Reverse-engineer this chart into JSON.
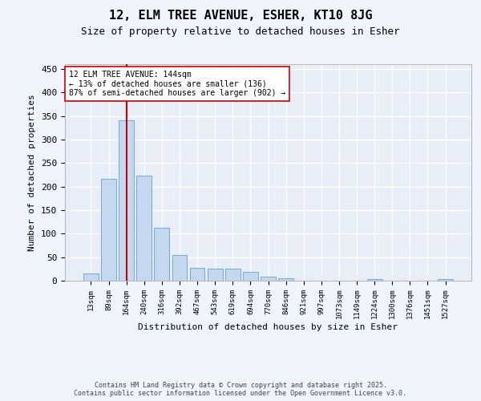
{
  "title1": "12, ELM TREE AVENUE, ESHER, KT10 8JG",
  "title2": "Size of property relative to detached houses in Esher",
  "xlabel": "Distribution of detached houses by size in Esher",
  "ylabel": "Number of detached properties",
  "bar_labels": [
    "13sqm",
    "89sqm",
    "164sqm",
    "240sqm",
    "316sqm",
    "392sqm",
    "467sqm",
    "543sqm",
    "619sqm",
    "694sqm",
    "770sqm",
    "846sqm",
    "921sqm",
    "997sqm",
    "1073sqm",
    "1149sqm",
    "1224sqm",
    "1300sqm",
    "1376sqm",
    "1451sqm",
    "1527sqm"
  ],
  "bar_values": [
    15,
    217,
    340,
    223,
    113,
    54,
    27,
    26,
    25,
    19,
    9,
    5,
    0,
    0,
    0,
    0,
    4,
    0,
    0,
    0,
    3
  ],
  "bar_color": "#c5d8f0",
  "bar_edge_color": "#7bafd4",
  "bg_color": "#e8eef8",
  "grid_color": "#ffffff",
  "vline_x": 2,
  "vline_color": "#cc0000",
  "annotation_text": "12 ELM TREE AVENUE: 144sqm\n← 13% of detached houses are smaller (136)\n87% of semi-detached houses are larger (902) →",
  "annotation_box_color": "#ffffff",
  "annotation_box_edge": "#cc0000",
  "ylim": [
    0,
    460
  ],
  "yticks": [
    0,
    50,
    100,
    150,
    200,
    250,
    300,
    350,
    400,
    450
  ],
  "fig_bg_color": "#f0f4fc",
  "footer_line1": "Contains HM Land Registry data © Crown copyright and database right 2025.",
  "footer_line2": "Contains public sector information licensed under the Open Government Licence v3.0."
}
